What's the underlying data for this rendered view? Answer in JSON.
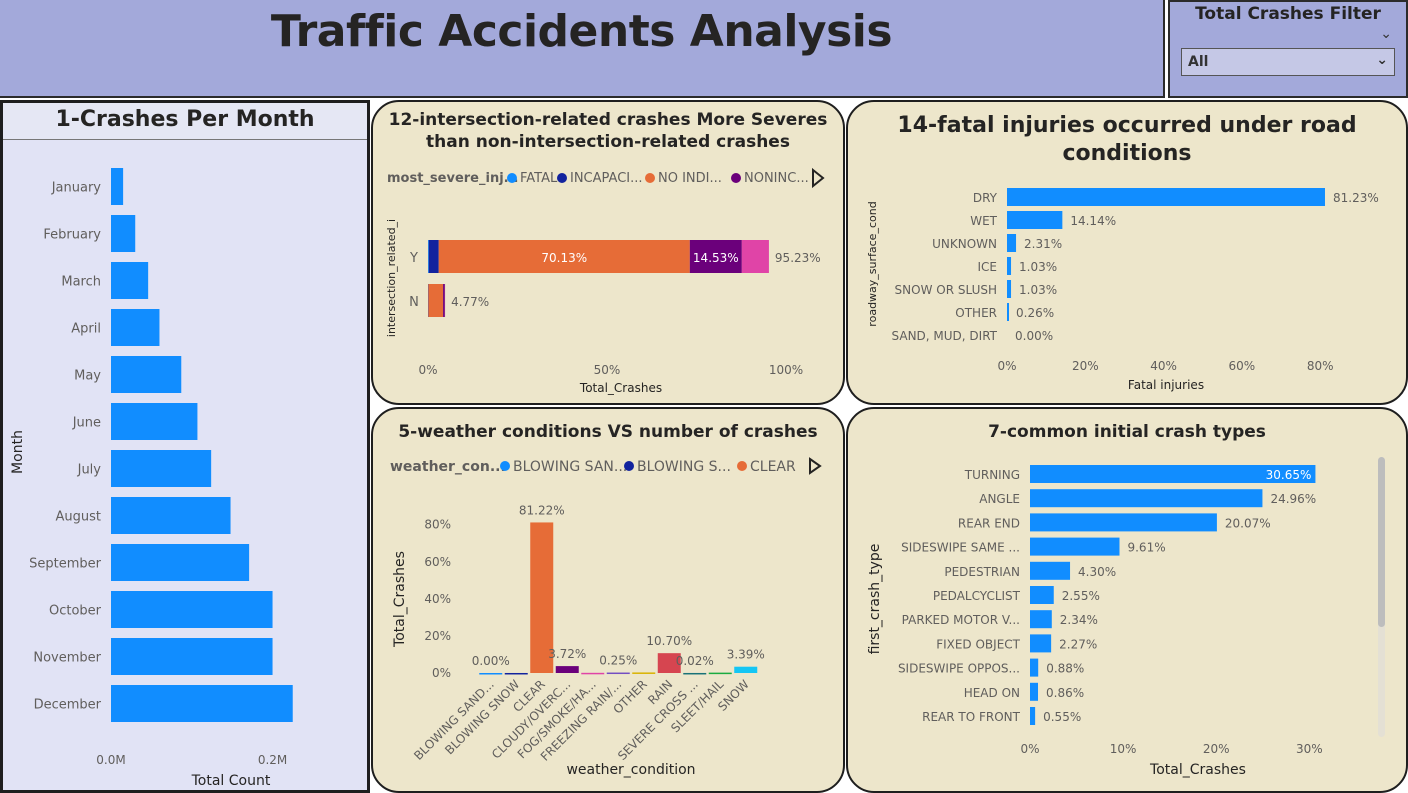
{
  "header": {
    "title": "Traffic Accidents Analysis"
  },
  "filter": {
    "title": "Total Crashes Filter",
    "value": "All"
  },
  "colors": {
    "accent": "#118dff",
    "fatal": "#118dff",
    "incapacitating": "#12239e",
    "no_indication": "#e66c37",
    "nonincapacitating": "#6b007b",
    "other_injury": "#e044a7",
    "header_bg": "#a3a9da",
    "card_bg": "#ede6cb"
  },
  "panels": {
    "months": {
      "title": "1-Crashes Per Month"
    },
    "intersection": {
      "title_line1": "12-intersection-related crashes More Severes",
      "title_line2": "than non-intersection-related crashes"
    },
    "fatal": {
      "title_line1": "14-fatal injuries occurred under road",
      "title_line2": "conditions"
    },
    "weather": {
      "title": "5-weather conditions VS number of crashes"
    },
    "crashtype": {
      "title": "7-common initial crash types"
    }
  },
  "chart_data": [
    {
      "id": "months",
      "type": "bar",
      "orientation": "horizontal",
      "categories": [
        "January",
        "February",
        "March",
        "April",
        "May",
        "June",
        "July",
        "August",
        "September",
        "October",
        "November",
        "December"
      ],
      "values": [
        0.015,
        0.03,
        0.046,
        0.06,
        0.087,
        0.107,
        0.124,
        0.148,
        0.171,
        0.2,
        0.2,
        0.225
      ],
      "xlabel": "Total Count",
      "ylabel": "Month",
      "xlim": [
        0,
        0.26
      ],
      "ticks": [
        {
          "v": 0,
          "label": "0.0M"
        },
        {
          "v": 0.2,
          "label": "0.2M"
        }
      ]
    },
    {
      "id": "intersection",
      "type": "bar",
      "orientation": "horizontal",
      "stacked": true,
      "legend_title": "most_severe_inj...",
      "legend": [
        {
          "name": "FATAL",
          "color": "#118dff"
        },
        {
          "name": "INCAPACI...",
          "color": "#12239e"
        },
        {
          "name": "NO INDI...",
          "color": "#e66c37"
        },
        {
          "name": "NONINC...",
          "color": "#6b007b"
        }
      ],
      "categories": [
        "Y",
        "N"
      ],
      "series": [
        {
          "color": "#118dff",
          "values": [
            0.2,
            0.01
          ]
        },
        {
          "color": "#12239e",
          "values": [
            2.8,
            0.1
          ]
        },
        {
          "color": "#e66c37",
          "values": [
            70.13,
            4.1
          ]
        },
        {
          "color": "#6b007b",
          "values": [
            14.53,
            0.5
          ]
        },
        {
          "color": "#e044a7",
          "values": [
            7.57,
            0.06
          ]
        }
      ],
      "segment_labels": [
        {
          "row": 0,
          "series": 2,
          "text": "70.13%"
        },
        {
          "row": 0,
          "series": 3,
          "text": "14.53%"
        }
      ],
      "totals": [
        "95.23%",
        "4.77%"
      ],
      "xlabel": "Total_Crashes",
      "ylabel": "intersection_related_i",
      "xlim": [
        0,
        100
      ],
      "ticks": [
        {
          "v": 0,
          "label": "0%"
        },
        {
          "v": 50,
          "label": "50%"
        },
        {
          "v": 100,
          "label": "100%"
        }
      ]
    },
    {
      "id": "fatal",
      "type": "bar",
      "orientation": "horizontal",
      "categories": [
        "DRY",
        "WET",
        "UNKNOWN",
        "ICE",
        "SNOW OR SLUSH",
        "OTHER",
        "SAND, MUD, DIRT"
      ],
      "values": [
        81.23,
        14.14,
        2.31,
        1.03,
        1.03,
        0.26,
        0.0
      ],
      "labels": [
        "81.23%",
        "14.14%",
        "2.31%",
        "1.03%",
        "1.03%",
        "0.26%",
        "0.00%"
      ],
      "xlabel": "Fatal injuries",
      "ylabel": "roadway_surface_cond",
      "xlim": [
        0,
        82
      ],
      "ticks": [
        {
          "v": 0,
          "label": "0%"
        },
        {
          "v": 20,
          "label": "20%"
        },
        {
          "v": 40,
          "label": "40%"
        },
        {
          "v": 60,
          "label": "60%"
        },
        {
          "v": 80,
          "label": "80%"
        }
      ]
    },
    {
      "id": "weather",
      "type": "bar",
      "orientation": "vertical",
      "legend_title": "weather_con...",
      "legend": [
        {
          "name": "BLOWING SAN...",
          "color": "#118dff"
        },
        {
          "name": "BLOWING S...",
          "color": "#12239e"
        },
        {
          "name": "CLEAR",
          "color": "#e66c37"
        }
      ],
      "categories": [
        "BLOWING SAND...",
        "BLOWING SNOW",
        "CLEAR",
        "CLOUDY/OVERC...",
        "FOG/SMOKE/HA...",
        "FREEZING RAIN/...",
        "OTHER",
        "RAIN",
        "SEVERE CROSS ...",
        "SLEET/HAIL",
        "SNOW"
      ],
      "values": [
        0.0,
        0.01,
        81.22,
        3.72,
        0.1,
        0.25,
        0.3,
        10.7,
        0.02,
        0.2,
        3.39
      ],
      "colors": [
        "#118dff",
        "#12239e",
        "#e66c37",
        "#6b007b",
        "#e044a7",
        "#744ec2",
        "#d9b300",
        "#d64550",
        "#197278",
        "#1aab40",
        "#15c6f4"
      ],
      "labels": [
        "0.00%",
        "",
        "81.22%",
        "3.72%",
        "",
        "0.25%",
        "",
        "10.70%",
        "0.02%",
        "",
        "3.39%"
      ],
      "xlabel": "weather_condition",
      "ylabel": "Total_Crashes",
      "ylim": [
        0,
        82
      ],
      "ticks": [
        {
          "v": 0,
          "label": "0%"
        },
        {
          "v": 20,
          "label": "20%"
        },
        {
          "v": 40,
          "label": "40%"
        },
        {
          "v": 60,
          "label": "60%"
        },
        {
          "v": 80,
          "label": "80%"
        }
      ]
    },
    {
      "id": "crashtype",
      "type": "bar",
      "orientation": "horizontal",
      "categories": [
        "TURNING",
        "ANGLE",
        "REAR END",
        "SIDESWIPE SAME ...",
        "PEDESTRIAN",
        "PEDALCYCLIST",
        "PARKED MOTOR V...",
        "FIXED OBJECT",
        "SIDESWIPE OPPOS...",
        "HEAD ON",
        "REAR TO FRONT"
      ],
      "values": [
        30.65,
        24.96,
        20.07,
        9.61,
        4.3,
        2.55,
        2.34,
        2.27,
        0.88,
        0.86,
        0.55
      ],
      "labels": [
        "30.65%",
        "24.96%",
        "20.07%",
        "9.61%",
        "4.30%",
        "2.55%",
        "2.34%",
        "2.27%",
        "0.88%",
        "0.86%",
        "0.55%"
      ],
      "xlabel": "Total_Crashes",
      "ylabel": "first_crash_type",
      "xlim": [
        0,
        32
      ],
      "ticks": [
        {
          "v": 0,
          "label": "0%"
        },
        {
          "v": 10,
          "label": "10%"
        },
        {
          "v": 20,
          "label": "20%"
        },
        {
          "v": 30,
          "label": "30%"
        }
      ]
    }
  ]
}
